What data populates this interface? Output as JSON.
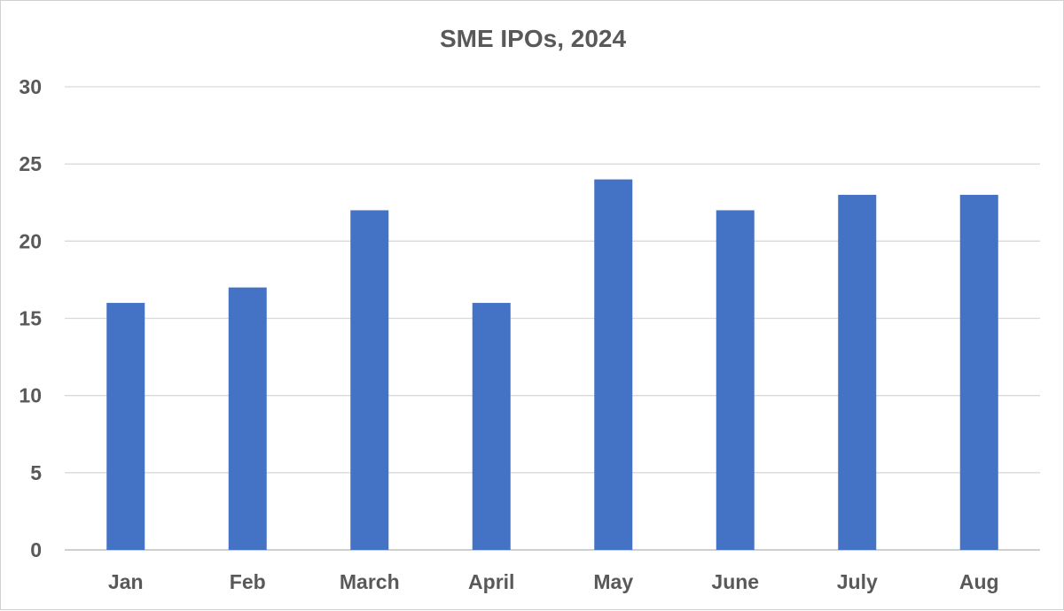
{
  "chart_data": {
    "type": "bar",
    "title": "SME IPOs, 2024",
    "categories": [
      "Jan",
      "Feb",
      "March",
      "April",
      "May",
      "June",
      "July",
      "Aug"
    ],
    "values": [
      16,
      17,
      22,
      16,
      24,
      22,
      23,
      23
    ],
    "ylim": [
      0,
      30
    ],
    "yticks": [
      0,
      5,
      10,
      15,
      20,
      25,
      30
    ],
    "xlabel": "",
    "ylabel": "",
    "grid": true,
    "legend": "none",
    "bar_color": "#4472C4"
  }
}
